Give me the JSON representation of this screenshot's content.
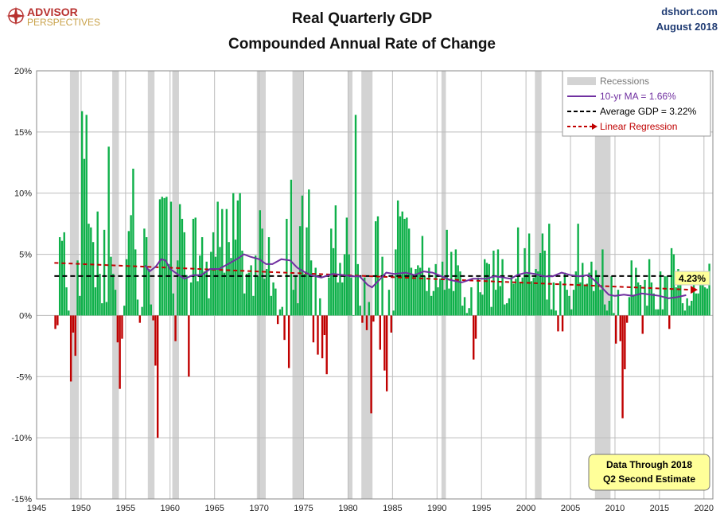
{
  "brand": {
    "logo_line1": "ADVISOR",
    "logo_line2": "PERSPECTIVES",
    "source": "dshort.com",
    "date": "August 2018"
  },
  "colors": {
    "positive_bar": "#0fb04a",
    "negative_bar": "#c00000",
    "recession": "#d3d3d3",
    "ma_line": "#7030a0",
    "average_line": "#000000",
    "regression": "#c00000",
    "note_bg": "#ffff99"
  },
  "chart_data": {
    "type": "bar",
    "title": "Real Quarterly GDP",
    "subtitle": "Compounded Annual Rate of Change",
    "xlabel": "",
    "ylabel": "",
    "xlim": [
      1945,
      2021
    ],
    "ylim": [
      -15,
      20
    ],
    "x_ticks": [
      "1945",
      "1950",
      "1955",
      "1960",
      "1965",
      "1970",
      "1975",
      "1980",
      "1985",
      "1990",
      "1995",
      "2000",
      "2005",
      "2010",
      "2015",
      "2020"
    ],
    "y_ticks": [
      "-15%",
      "-10%",
      "-5%",
      "0%",
      "5%",
      "10%",
      "15%",
      "20%"
    ],
    "y_tick_values": [
      -15,
      -10,
      -5,
      0,
      5,
      10,
      15,
      20
    ],
    "grid": true,
    "legend_position": "top-right",
    "legend": {
      "recessions": "Recessions",
      "ma": "10-yr MA = 1.66%",
      "average": "Average GDP = 3.22%",
      "regression": "Linear Regression"
    },
    "latest_value_label": "4.23%",
    "note_line1": "Data Through 2018",
    "note_line2": "Q2 Second Estimate",
    "average_value": 3.22,
    "regression": [
      [
        1947.0,
        4.3
      ],
      [
        2018.5,
        2.1
      ]
    ],
    "recessions": [
      [
        1948.75,
        1949.75
      ],
      [
        1953.5,
        1954.25
      ],
      [
        1957.5,
        1958.25
      ],
      [
        1960.25,
        1961.0
      ],
      [
        1969.75,
        1970.75
      ],
      [
        1973.75,
        1975.0
      ],
      [
        1980.0,
        1980.5
      ],
      [
        1981.5,
        1982.75
      ],
      [
        1990.5,
        1991.0
      ],
      [
        2001.0,
        2001.75
      ],
      [
        2007.75,
        2009.5
      ]
    ],
    "moving_average": [
      [
        1957.2,
        4.1
      ],
      [
        1957.7,
        3.6
      ],
      [
        1958.4,
        4.0
      ],
      [
        1959.0,
        4.6
      ],
      [
        1959.5,
        4.5
      ],
      [
        1960.0,
        3.8
      ],
      [
        1960.8,
        3.4
      ],
      [
        1961.6,
        3.0
      ],
      [
        1962.6,
        3.3
      ],
      [
        1963.5,
        3.3
      ],
      [
        1964.5,
        3.8
      ],
      [
        1965.5,
        3.8
      ],
      [
        1966.5,
        4.2
      ],
      [
        1967.5,
        4.6
      ],
      [
        1968.3,
        5.0
      ],
      [
        1969.0,
        4.8
      ],
      [
        1970.0,
        4.6
      ],
      [
        1970.8,
        4.2
      ],
      [
        1971.5,
        4.2
      ],
      [
        1972.5,
        4.6
      ],
      [
        1973.5,
        4.5
      ],
      [
        1974.3,
        3.9
      ],
      [
        1975.0,
        3.6
      ],
      [
        1975.8,
        3.3
      ],
      [
        1977.0,
        3.1
      ],
      [
        1978.3,
        3.4
      ],
      [
        1979.5,
        3.3
      ],
      [
        1980.5,
        3.2
      ],
      [
        1981.3,
        3.2
      ],
      [
        1982.2,
        2.5
      ],
      [
        1982.7,
        2.3
      ],
      [
        1983.5,
        2.9
      ],
      [
        1984.3,
        3.5
      ],
      [
        1985.2,
        3.4
      ],
      [
        1986.5,
        3.5
      ],
      [
        1987.5,
        3.3
      ],
      [
        1988.5,
        3.6
      ],
      [
        1989.5,
        3.5
      ],
      [
        1990.5,
        3.2
      ],
      [
        1991.5,
        2.9
      ],
      [
        1992.8,
        2.7
      ],
      [
        1994.0,
        3.0
      ],
      [
        1995.5,
        3.0
      ],
      [
        1996.5,
        3.2
      ],
      [
        1997.5,
        3.1
      ],
      [
        1998.3,
        3.0
      ],
      [
        1999.0,
        3.3
      ],
      [
        2000.0,
        3.5
      ],
      [
        2001.0,
        3.4
      ],
      [
        2002.0,
        3.2
      ],
      [
        2003.0,
        3.2
      ],
      [
        2004.0,
        3.5
      ],
      [
        2005.0,
        3.3
      ],
      [
        2006.0,
        3.2
      ],
      [
        2007.0,
        3.3
      ],
      [
        2007.8,
        2.8
      ],
      [
        2008.5,
        2.3
      ],
      [
        2009.3,
        1.7
      ],
      [
        2010.0,
        1.6
      ],
      [
        2011.0,
        1.7
      ],
      [
        2012.0,
        1.6
      ],
      [
        2013.0,
        1.8
      ],
      [
        2014.0,
        1.7
      ],
      [
        2015.0,
        1.6
      ],
      [
        2016.0,
        1.4
      ],
      [
        2017.0,
        1.5
      ],
      [
        2018.0,
        1.66
      ]
    ],
    "start_year": 1947.0,
    "quarter_step": 0.25,
    "values": [
      -1.1,
      -0.8,
      6.4,
      6.1,
      6.8,
      2.3,
      0.4,
      -5.4,
      -1.4,
      -3.3,
      4.5,
      1.6,
      16.7,
      12.8,
      16.4,
      7.5,
      7.2,
      6.0,
      2.3,
      8.5,
      3.4,
      1.0,
      7.0,
      1.1,
      13.8,
      4.8,
      3.4,
      2.1,
      -2.2,
      -6.0,
      -1.9,
      0.8,
      4.6,
      6.9,
      8.2,
      12.0,
      5.4,
      1.3,
      -0.6,
      0.7,
      7.1,
      6.4,
      3.8,
      0.9,
      -0.4,
      -4.1,
      -10.0,
      9.5,
      9.7,
      9.6,
      9.7,
      4.2,
      9.3,
      1.8,
      -2.1,
      4.5,
      9.1,
      7.9,
      6.8,
      3.3,
      -5.0,
      2.7,
      7.9,
      8.0,
      2.8,
      4.9,
      6.4,
      3.6,
      4.4,
      1.4,
      5.2,
      6.8,
      4.8,
      9.3,
      5.6,
      8.7,
      3.5,
      8.7,
      6.0,
      4.7,
      10.0,
      6.2,
      9.4,
      10.0,
      5.3,
      1.8,
      3.4,
      3.5,
      4.1,
      1.6,
      4.9,
      3.2,
      8.6,
      7.1,
      3.0,
      3.8,
      6.4,
      1.6,
      2.7,
      2.2,
      -0.7,
      0.5,
      0.7,
      -2.0,
      7.9,
      -4.3,
      11.1,
      2.1,
      3.2,
      1.0,
      7.3,
      9.8,
      3.4,
      7.2,
      10.3,
      4.5,
      -2.2,
      3.9,
      -3.2,
      1.4,
      -3.5,
      -1.6,
      -4.8,
      3.1,
      7.1,
      5.5,
      9.0,
      2.7,
      4.3,
      2.7,
      5.0,
      8.0,
      5.0,
      3.1,
      0.0,
      16.4,
      4.2,
      0.8,
      -0.6,
      3.1,
      -1.2,
      1.1,
      -8.0,
      -0.5,
      7.7,
      8.1,
      -2.8,
      4.8,
      -4.5,
      -6.2,
      2.1,
      -1.4,
      0.4,
      5.4,
      9.4,
      8.1,
      8.5,
      7.9,
      8.0,
      7.1,
      3.9,
      3.3,
      3.8,
      4.1,
      3.9,
      6.5,
      3.2,
      2.0,
      3.9,
      1.6,
      2.0,
      4.2,
      2.3,
      3.0,
      4.4,
      2.1,
      7.0,
      2.2,
      5.2,
      2.0,
      5.4,
      4.1,
      3.6,
      0.8,
      1.5,
      0.2,
      0.6,
      2.3,
      -3.6,
      -1.9,
      3.1,
      1.9,
      1.7,
      4.6,
      4.3,
      4.2,
      0.7,
      5.3,
      2.1,
      5.4,
      2.4,
      4.6,
      0.9,
      1.0,
      1.4,
      3.2,
      2.6,
      3.0,
      7.2,
      2.7,
      3.1,
      5.5,
      3.4,
      6.7,
      2.8,
      3.1,
      3.8,
      3.6,
      5.1,
      6.7,
      5.3,
      1.3,
      7.5,
      0.5,
      2.7,
      0.4,
      -1.3,
      2.8,
      -1.3,
      3.5,
      2.1,
      1.6,
      0.5,
      2.1,
      3.6,
      7.5,
      2.7,
      4.3,
      2.4,
      2.6,
      3.5,
      4.4,
      2.0,
      3.7,
      3.3,
      2.1,
      5.4,
      0.9,
      0.4,
      1.2,
      3.2,
      0.2,
      -2.3,
      2.1,
      -2.1,
      -8.4,
      -4.4,
      -0.6,
      1.5,
      4.5,
      1.7,
      3.9,
      2.7,
      2.5,
      -1.5,
      2.9,
      0.8,
      4.6,
      2.7,
      1.8,
      0.5,
      0.5,
      3.6,
      0.5,
      3.2,
      3.2,
      -1.1,
      5.5,
      5.0,
      2.3,
      3.8,
      3.2,
      1.0,
      0.4,
      1.4,
      0.8,
      1.2,
      2.8,
      1.8,
      1.8,
      3.0,
      2.8,
      2.3,
      2.2,
      4.23
    ]
  }
}
